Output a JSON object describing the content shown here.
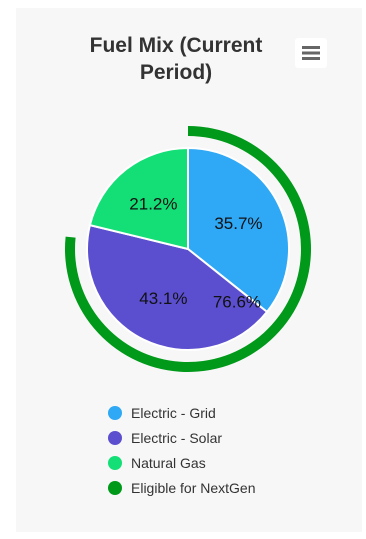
{
  "title": "Fuel Mix (Current Period)",
  "menu_icon": "hamburger-menu-icon",
  "chart_data": [
    {
      "type": "pie",
      "name": "Fuel Mix",
      "categories": [
        "Electric - Grid",
        "Electric - Solar",
        "Natural Gas"
      ],
      "values": [
        35.7,
        43.1,
        21.2
      ],
      "labels": [
        "35.7%",
        "43.1%",
        "21.2%"
      ],
      "colors": [
        "#2fa8f5",
        "#5b4fcf",
        "#14df77"
      ]
    },
    {
      "type": "pie",
      "name": "Eligible for NextGen",
      "categories": [
        "Eligible for NextGen"
      ],
      "values": [
        76.6
      ],
      "labels": [
        "76.6%"
      ],
      "colors": [
        "#00991a"
      ]
    }
  ],
  "legend": [
    {
      "label": "Electric - Grid",
      "color": "#2fa8f5"
    },
    {
      "label": "Electric - Solar",
      "color": "#5b4fcf"
    },
    {
      "label": "Natural Gas",
      "color": "#14df77"
    },
    {
      "label": "Eligible for NextGen",
      "color": "#00991a"
    }
  ]
}
